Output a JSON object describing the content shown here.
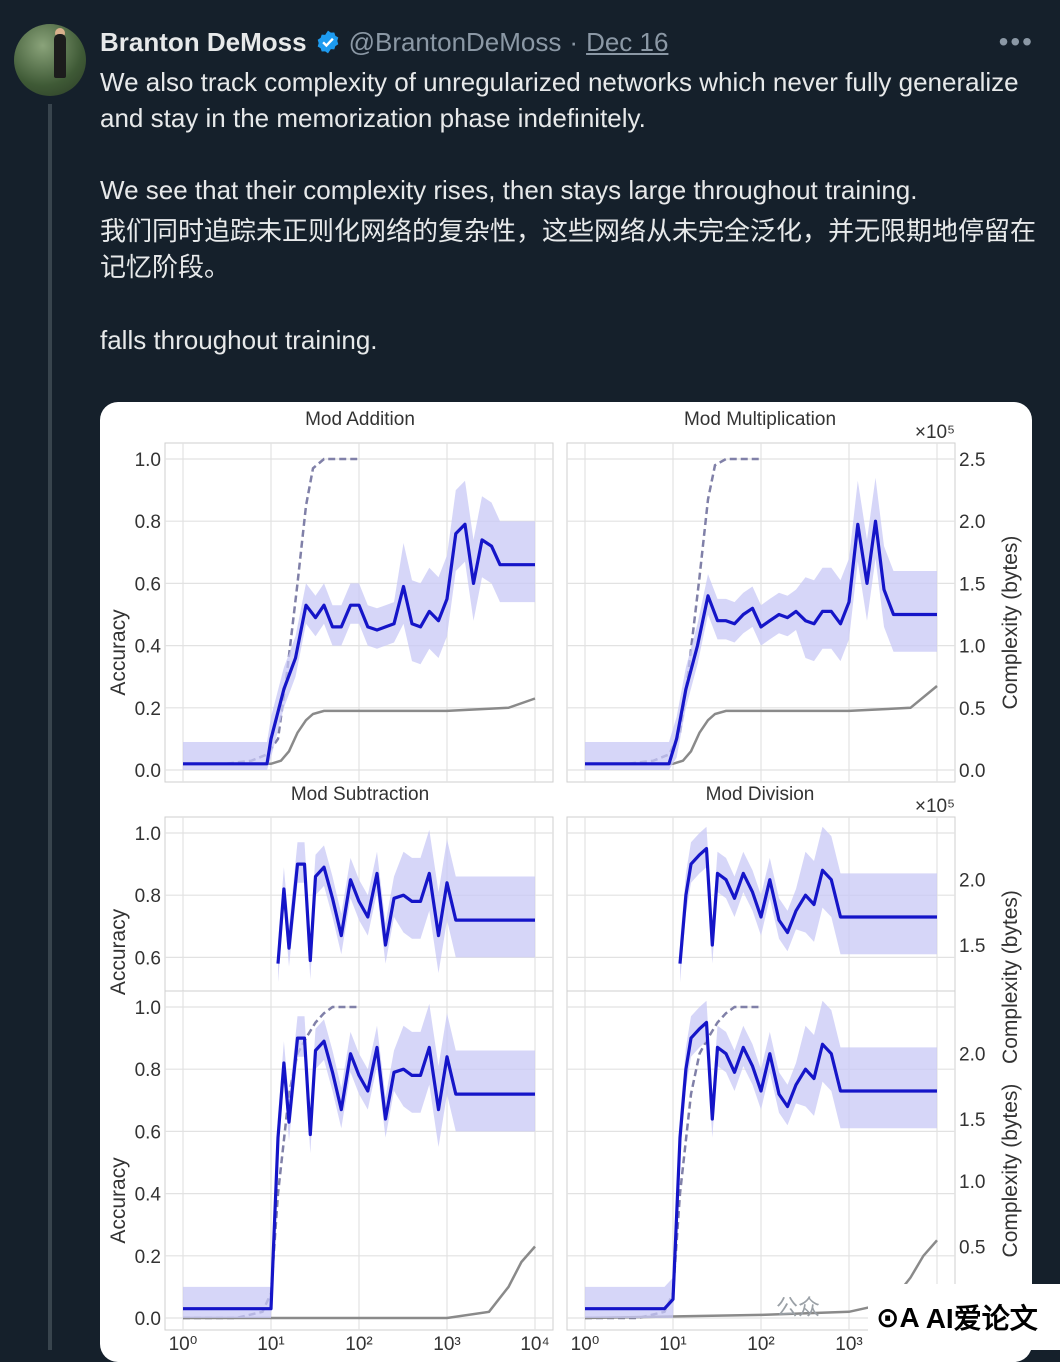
{
  "tweet": {
    "author": "Branton DeMoss",
    "handle": "@BrantonDeMoss",
    "separator": "·",
    "date": "Dec 16",
    "more": "•••",
    "lines": [
      "We also track complexity of unregularized networks which never fully generalize and stay in the memorization phase indefinitely.",
      "We see that their complexity rises, then stays large throughout training.",
      "我们同时追踪未正则化网络的复杂性，这些网络从未完全泛化，并无限期地停留在记忆阶段。",
      "falls throughout training."
    ]
  },
  "colors": {
    "bg": "#15202b",
    "verified": "#1d9bf0",
    "complexity": "#1515c8",
    "band": "#c8c8f5",
    "accuracy": "#8a8a8a",
    "dashed": "#8080a8"
  },
  "chart_data": [
    {
      "type": "line",
      "title": "Mod Addition",
      "ylabel": "Accuracy",
      "y_ticks": [
        "1.0",
        "0.8",
        "0.6",
        "0.4",
        "0.2",
        "0.0"
      ],
      "right_ticks": [],
      "xscale": "log",
      "xlim": [
        1,
        10000
      ],
      "series": [
        {
          "role": "train_acc",
          "x": [
            1,
            3,
            6,
            9,
            12,
            15,
            20,
            25,
            30,
            40,
            50,
            70,
            100
          ],
          "y": [
            0.02,
            0.02,
            0.03,
            0.05,
            0.1,
            0.3,
            0.6,
            0.85,
            0.97,
            1.0,
            1.0,
            1.0,
            1.0
          ]
        },
        {
          "role": "test_acc",
          "x": [
            1,
            10,
            13,
            16,
            20,
            25,
            30,
            40,
            60,
            100,
            1000,
            5000,
            10000
          ],
          "y": [
            0.02,
            0.02,
            0.03,
            0.06,
            0.12,
            0.16,
            0.18,
            0.19,
            0.19,
            0.19,
            0.19,
            0.2,
            0.23
          ]
        },
        {
          "role": "complexity",
          "x": [
            1,
            9,
            10,
            14,
            19,
            25,
            32,
            40,
            50,
            63,
            80,
            100,
            126,
            160,
            200,
            250,
            320,
            400,
            500,
            630,
            800,
            1000,
            1260,
            1600,
            2000,
            2500,
            3200,
            4000,
            5000,
            6300,
            8000,
            10000
          ],
          "y": [
            0.02,
            0.02,
            0.1,
            0.26,
            0.36,
            0.53,
            0.49,
            0.53,
            0.46,
            0.46,
            0.53,
            0.53,
            0.46,
            0.45,
            0.46,
            0.47,
            0.59,
            0.47,
            0.46,
            0.51,
            0.48,
            0.55,
            0.76,
            0.79,
            0.6,
            0.74,
            0.72,
            0.66,
            0.66,
            0.66,
            0.66,
            0.66
          ]
        }
      ]
    },
    {
      "type": "line",
      "title": "Mod Multiplication",
      "ylabel": "Complexity (bytes)",
      "y_ticks": [],
      "right_ticks": [
        "2.5",
        "2.0",
        "1.5",
        "1.0",
        "0.5",
        "0.0"
      ],
      "right_scale": "×10⁵",
      "xscale": "log",
      "xlim": [
        1,
        10000
      ],
      "series": [
        {
          "role": "train_acc",
          "x": [
            1,
            3,
            6,
            9,
            12,
            15,
            20,
            25,
            30,
            40,
            50,
            70,
            100
          ],
          "y": [
            0.02,
            0.02,
            0.03,
            0.05,
            0.12,
            0.32,
            0.62,
            0.87,
            0.98,
            1.0,
            1.0,
            1.0,
            1.0
          ]
        },
        {
          "role": "test_acc",
          "x": [
            1,
            10,
            13,
            16,
            20,
            25,
            30,
            40,
            60,
            100,
            1000,
            5000,
            10000
          ],
          "y": [
            0.02,
            0.02,
            0.03,
            0.06,
            0.12,
            0.16,
            0.18,
            0.19,
            0.19,
            0.19,
            0.19,
            0.2,
            0.27
          ]
        },
        {
          "role": "complexity",
          "x": [
            1,
            9,
            11,
            14,
            19,
            25,
            32,
            40,
            50,
            63,
            80,
            100,
            126,
            160,
            200,
            250,
            320,
            400,
            500,
            630,
            800,
            1000,
            1260,
            1600,
            2000,
            2500,
            3200,
            4000,
            5000,
            6300,
            8000,
            10000
          ],
          "y": [
            0.02,
            0.02,
            0.1,
            0.26,
            0.4,
            0.56,
            0.48,
            0.48,
            0.47,
            0.5,
            0.52,
            0.46,
            0.48,
            0.5,
            0.49,
            0.51,
            0.48,
            0.47,
            0.51,
            0.51,
            0.47,
            0.54,
            0.79,
            0.6,
            0.8,
            0.58,
            0.5,
            0.5,
            0.5,
            0.5,
            0.5,
            0.5
          ]
        }
      ]
    },
    {
      "type": "line",
      "title": "Mod Subtraction",
      "ylabel": "Accuracy",
      "y_ticks": [
        "1.0",
        "0.8",
        "0.6"
      ],
      "right_ticks": [],
      "xscale": "log",
      "xlim": [
        1,
        10000
      ],
      "series": [
        {
          "role": "complexity",
          "x": [
            12,
            14,
            16,
            20,
            24,
            28,
            32,
            40,
            50,
            63,
            80,
            100,
            126,
            160,
            200,
            250,
            320,
            400,
            500,
            630,
            800,
            1000,
            1260,
            1600,
            2000,
            2500,
            3200,
            4000,
            5000,
            6300,
            8000,
            10000
          ],
          "y": [
            0.58,
            0.82,
            0.63,
            0.9,
            0.9,
            0.59,
            0.86,
            0.89,
            0.79,
            0.67,
            0.85,
            0.78,
            0.73,
            0.87,
            0.64,
            0.79,
            0.8,
            0.78,
            0.78,
            0.87,
            0.67,
            0.84,
            0.72,
            0.72,
            0.72,
            0.72,
            0.72,
            0.72,
            0.72,
            0.72,
            0.72,
            0.72
          ]
        }
      ]
    },
    {
      "type": "line",
      "title": "Mod Division",
      "ylabel": "Complexity (bytes)",
      "y_ticks": [],
      "right_ticks": [
        "2.0",
        "1.5"
      ],
      "right_scale": "×10⁵",
      "xscale": "log",
      "xlim": [
        1,
        10000
      ],
      "series": [
        {
          "role": "complexity",
          "x": [
            12,
            14,
            16,
            20,
            24,
            28,
            32,
            40,
            50,
            63,
            80,
            100,
            126,
            160,
            200,
            250,
            320,
            400,
            500,
            630,
            800,
            1000,
            1260,
            1600,
            2000,
            2500,
            3200,
            4000,
            5000,
            6300,
            8000,
            10000
          ],
          "y": [
            0.58,
            0.8,
            0.9,
            0.93,
            0.95,
            0.64,
            0.87,
            0.85,
            0.79,
            0.87,
            0.81,
            0.73,
            0.85,
            0.72,
            0.68,
            0.75,
            0.8,
            0.77,
            0.88,
            0.85,
            0.73,
            0.73,
            0.73,
            0.73,
            0.73,
            0.73,
            0.73,
            0.73,
            0.73,
            0.73,
            0.73,
            0.73
          ]
        }
      ]
    },
    {
      "type": "line",
      "title": "",
      "ylabel": "Accuracy",
      "y_ticks": [
        "1.0",
        "0.8",
        "0.6",
        "0.4",
        "0.2",
        "0.0"
      ],
      "right_ticks": [],
      "x_ticks": [
        "10⁰",
        "10¹",
        "10²",
        "10³",
        "10⁴"
      ],
      "xscale": "log",
      "xlim": [
        1,
        10000
      ],
      "series": [
        {
          "role": "train_acc",
          "x": [
            1,
            4,
            8,
            10,
            12,
            16,
            20,
            25,
            32,
            40,
            50,
            70,
            100
          ],
          "y": [
            0.0,
            0.0,
            0.02,
            0.08,
            0.4,
            0.72,
            0.85,
            0.9,
            0.95,
            0.98,
            1.0,
            1.0,
            1.0
          ]
        },
        {
          "role": "test_acc",
          "x": [
            1,
            100,
            1000,
            3000,
            5000,
            7000,
            10000
          ],
          "y": [
            0.0,
            0.0,
            0.0,
            0.02,
            0.1,
            0.18,
            0.23
          ]
        },
        {
          "role": "complexity",
          "x": [
            1,
            10,
            12,
            14,
            16,
            20,
            24,
            28,
            32,
            40,
            50,
            63,
            80,
            100,
            126,
            160,
            200,
            250,
            320,
            400,
            500,
            630,
            800,
            1000,
            1260,
            1600,
            2000,
            2500,
            3200,
            4000,
            5000,
            6300,
            8000,
            10000
          ],
          "y": [
            0.03,
            0.03,
            0.58,
            0.82,
            0.63,
            0.9,
            0.9,
            0.59,
            0.86,
            0.89,
            0.79,
            0.67,
            0.85,
            0.78,
            0.73,
            0.87,
            0.64,
            0.79,
            0.8,
            0.78,
            0.78,
            0.87,
            0.67,
            0.84,
            0.72,
            0.72,
            0.72,
            0.72,
            0.72,
            0.72,
            0.72,
            0.72,
            0.72,
            0.72
          ]
        }
      ]
    },
    {
      "type": "line",
      "title": "",
      "ylabel": "Complexity (bytes)",
      "y_ticks": [],
      "right_ticks": [
        "2.0",
        "1.5",
        "1.0",
        "0.5"
      ],
      "x_ticks": [
        "10⁰",
        "10¹",
        "10²",
        "10³"
      ],
      "xscale": "log",
      "xlim": [
        1,
        10000
      ],
      "series": [
        {
          "role": "train_acc",
          "x": [
            1,
            4,
            8,
            10,
            12,
            16,
            20,
            25,
            32,
            40,
            50,
            70,
            100
          ],
          "y": [
            0.0,
            0.0,
            0.02,
            0.08,
            0.4,
            0.72,
            0.85,
            0.9,
            0.95,
            0.98,
            1.0,
            1.0,
            1.0
          ]
        },
        {
          "role": "test_acc",
          "x": [
            1,
            100,
            1000,
            3000,
            5000,
            7000,
            10000
          ],
          "y": [
            0.0,
            0.01,
            0.02,
            0.05,
            0.13,
            0.2,
            0.25
          ]
        },
        {
          "role": "complexity",
          "x": [
            1,
            8,
            10,
            12,
            14,
            16,
            20,
            24,
            28,
            32,
            40,
            50,
            63,
            80,
            100,
            126,
            160,
            200,
            250,
            320,
            400,
            500,
            630,
            800,
            1000,
            1260,
            1600,
            2000,
            2500,
            3200,
            4000,
            5000,
            6300,
            8000,
            10000
          ],
          "y": [
            0.03,
            0.03,
            0.06,
            0.58,
            0.8,
            0.9,
            0.93,
            0.95,
            0.64,
            0.87,
            0.85,
            0.79,
            0.87,
            0.81,
            0.73,
            0.85,
            0.72,
            0.68,
            0.75,
            0.8,
            0.77,
            0.88,
            0.85,
            0.73,
            0.73,
            0.73,
            0.73,
            0.73,
            0.73,
            0.73,
            0.73,
            0.73,
            0.73,
            0.73,
            0.73
          ]
        }
      ]
    }
  ],
  "watermark": {
    "faint": "公众",
    "logo": "⊙A",
    "text": "AI爱论文"
  }
}
